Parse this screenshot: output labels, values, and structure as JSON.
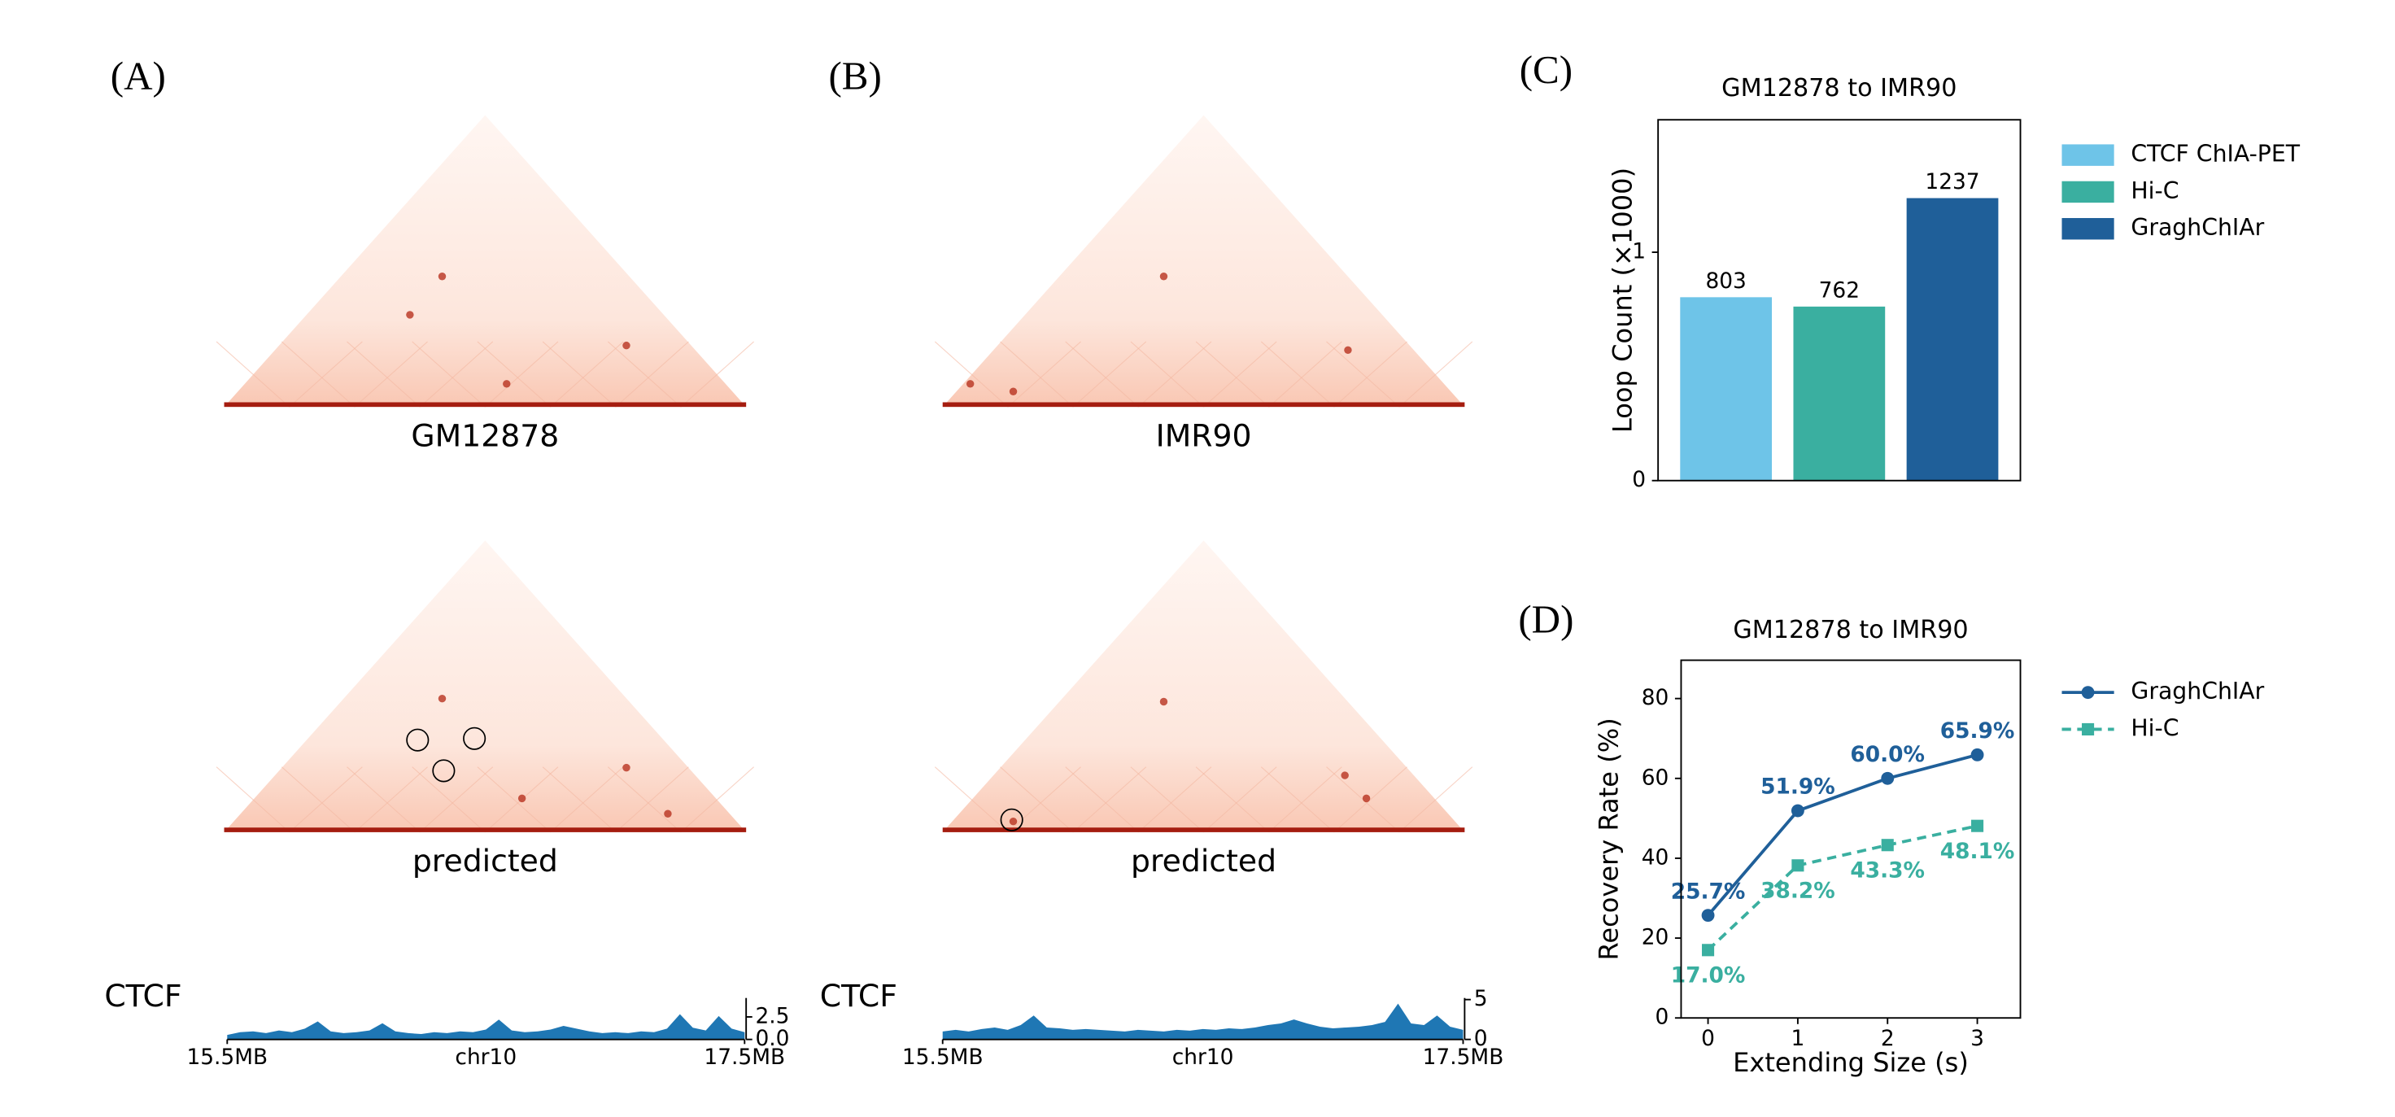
{
  "panels": [
    {
      "label": "(A)",
      "maps": [
        "GM12878",
        "predicted"
      ]
    },
    {
      "label": "(B)",
      "maps": [
        "IMR90",
        "predicted"
      ]
    },
    {
      "label": "(C)"
    },
    {
      "label": "(D)"
    }
  ],
  "chart_data": [
    {
      "type": "area",
      "ylabel": "CTCF",
      "xlabel": "chr10",
      "color": "#1f77b4",
      "yaxis_side": "right",
      "x": [
        15.5,
        15.55,
        15.6,
        15.65,
        15.7,
        15.75,
        15.8,
        15.85,
        15.9,
        15.95,
        16.0,
        16.05,
        16.1,
        16.15,
        16.2,
        16.25,
        16.3,
        16.35,
        16.4,
        16.45,
        16.5,
        16.55,
        16.6,
        16.65,
        16.7,
        16.75,
        16.8,
        16.85,
        16.9,
        16.95,
        17.0,
        17.05,
        17.1,
        17.15,
        17.2,
        17.25,
        17.3,
        17.35,
        17.4,
        17.45,
        17.5
      ],
      "values": [
        0.5,
        0.8,
        0.9,
        0.7,
        1.0,
        0.8,
        1.2,
        2.0,
        0.9,
        0.7,
        0.8,
        1.0,
        1.8,
        0.9,
        0.7,
        0.6,
        0.8,
        0.7,
        0.9,
        0.8,
        1.1,
        2.2,
        1.0,
        0.8,
        0.9,
        1.1,
        1.5,
        1.2,
        0.9,
        0.7,
        0.8,
        0.7,
        0.9,
        0.8,
        1.2,
        2.8,
        1.3,
        1.0,
        2.6,
        1.2,
        0.8
      ],
      "xlim": [
        15.5,
        17.5
      ],
      "xticks": [
        {
          "value": 15.5,
          "label": "15.5MB"
        },
        {
          "value": 17.5,
          "label": "17.5MB"
        }
      ],
      "ylim": [
        0,
        4.6
      ],
      "yticks": [
        {
          "value": 0,
          "label": "0.0"
        },
        2.5
      ]
    },
    {
      "type": "area",
      "ylabel": "CTCF",
      "xlabel": "chr10",
      "color": "#1f77b4",
      "yaxis_side": "right",
      "x": [
        15.5,
        15.55,
        15.6,
        15.65,
        15.7,
        15.75,
        15.8,
        15.85,
        15.9,
        15.95,
        16.0,
        16.05,
        16.1,
        16.15,
        16.2,
        16.25,
        16.3,
        16.35,
        16.4,
        16.45,
        16.5,
        16.55,
        16.6,
        16.65,
        16.7,
        16.75,
        16.8,
        16.85,
        16.9,
        16.95,
        17.0,
        17.05,
        17.1,
        17.15,
        17.2,
        17.25,
        17.3,
        17.35,
        17.4,
        17.45,
        17.5
      ],
      "values": [
        1.0,
        1.2,
        1.0,
        1.3,
        1.5,
        1.2,
        1.8,
        3.0,
        1.5,
        1.4,
        1.2,
        1.3,
        1.2,
        1.1,
        1.0,
        1.2,
        1.1,
        1.0,
        1.2,
        1.1,
        1.3,
        1.2,
        1.4,
        1.3,
        1.5,
        1.8,
        2.0,
        2.5,
        2.0,
        1.6,
        1.4,
        1.5,
        1.6,
        1.8,
        2.2,
        4.5,
        2.0,
        1.8,
        3.0,
        1.6,
        1.2
      ],
      "xlim": [
        15.5,
        17.5
      ],
      "xticks": [
        {
          "value": 15.5,
          "label": "15.5MB"
        },
        {
          "value": 17.5,
          "label": "17.5MB"
        }
      ],
      "ylim": [
        0,
        5.2
      ],
      "yticks": [
        0,
        5
      ]
    },
    {
      "type": "bar",
      "title": "GM12878 to IMR90",
      "ylabel": "Loop Count (×1000)",
      "categories": [
        null
      ],
      "series": [
        {
          "name": "CTCF ChIA-PET",
          "color": "#6ec4e8",
          "values": [
            0.803
          ],
          "value_labels": [
            "803"
          ]
        },
        {
          "name": "Hi-C",
          "color": "#3aafa0",
          "values": [
            0.762
          ],
          "value_labels": [
            "762"
          ]
        },
        {
          "name": "GraghChIAr",
          "color": "#1f5f99",
          "values": [
            1.237
          ],
          "value_labels": [
            "1237"
          ]
        }
      ],
      "ylim": [
        0,
        1.58
      ],
      "yticks": [
        0,
        1
      ],
      "legend": "outside-right"
    },
    {
      "type": "line",
      "title": "GM12878 to IMR90",
      "xlabel": "Extending Size (s)",
      "ylabel": "Recovery Rate (%)",
      "x": [
        0,
        1,
        2,
        3
      ],
      "series": [
        {
          "name": "GraghChIAr",
          "color": "#1f5f99",
          "marker": "circle",
          "dash": false,
          "values": [
            25.7,
            51.9,
            60.0,
            65.9
          ],
          "value_labels": [
            "25.7%",
            "51.9%",
            "60.0%",
            "65.9%"
          ]
        },
        {
          "name": "Hi-C",
          "color": "#3aafa0",
          "marker": "square",
          "dash": true,
          "values": [
            17.0,
            38.2,
            43.3,
            48.1
          ],
          "value_labels": [
            "17.0%",
            "38.2%",
            "43.3%",
            "48.1%"
          ]
        }
      ],
      "xlim": [
        -0.3,
        3.48
      ],
      "xticks": [
        0,
        1,
        2,
        3
      ],
      "ylim": [
        0,
        89.6
      ],
      "yticks": [
        0,
        20,
        40,
        60,
        80
      ],
      "legend": "outside-right"
    }
  ]
}
